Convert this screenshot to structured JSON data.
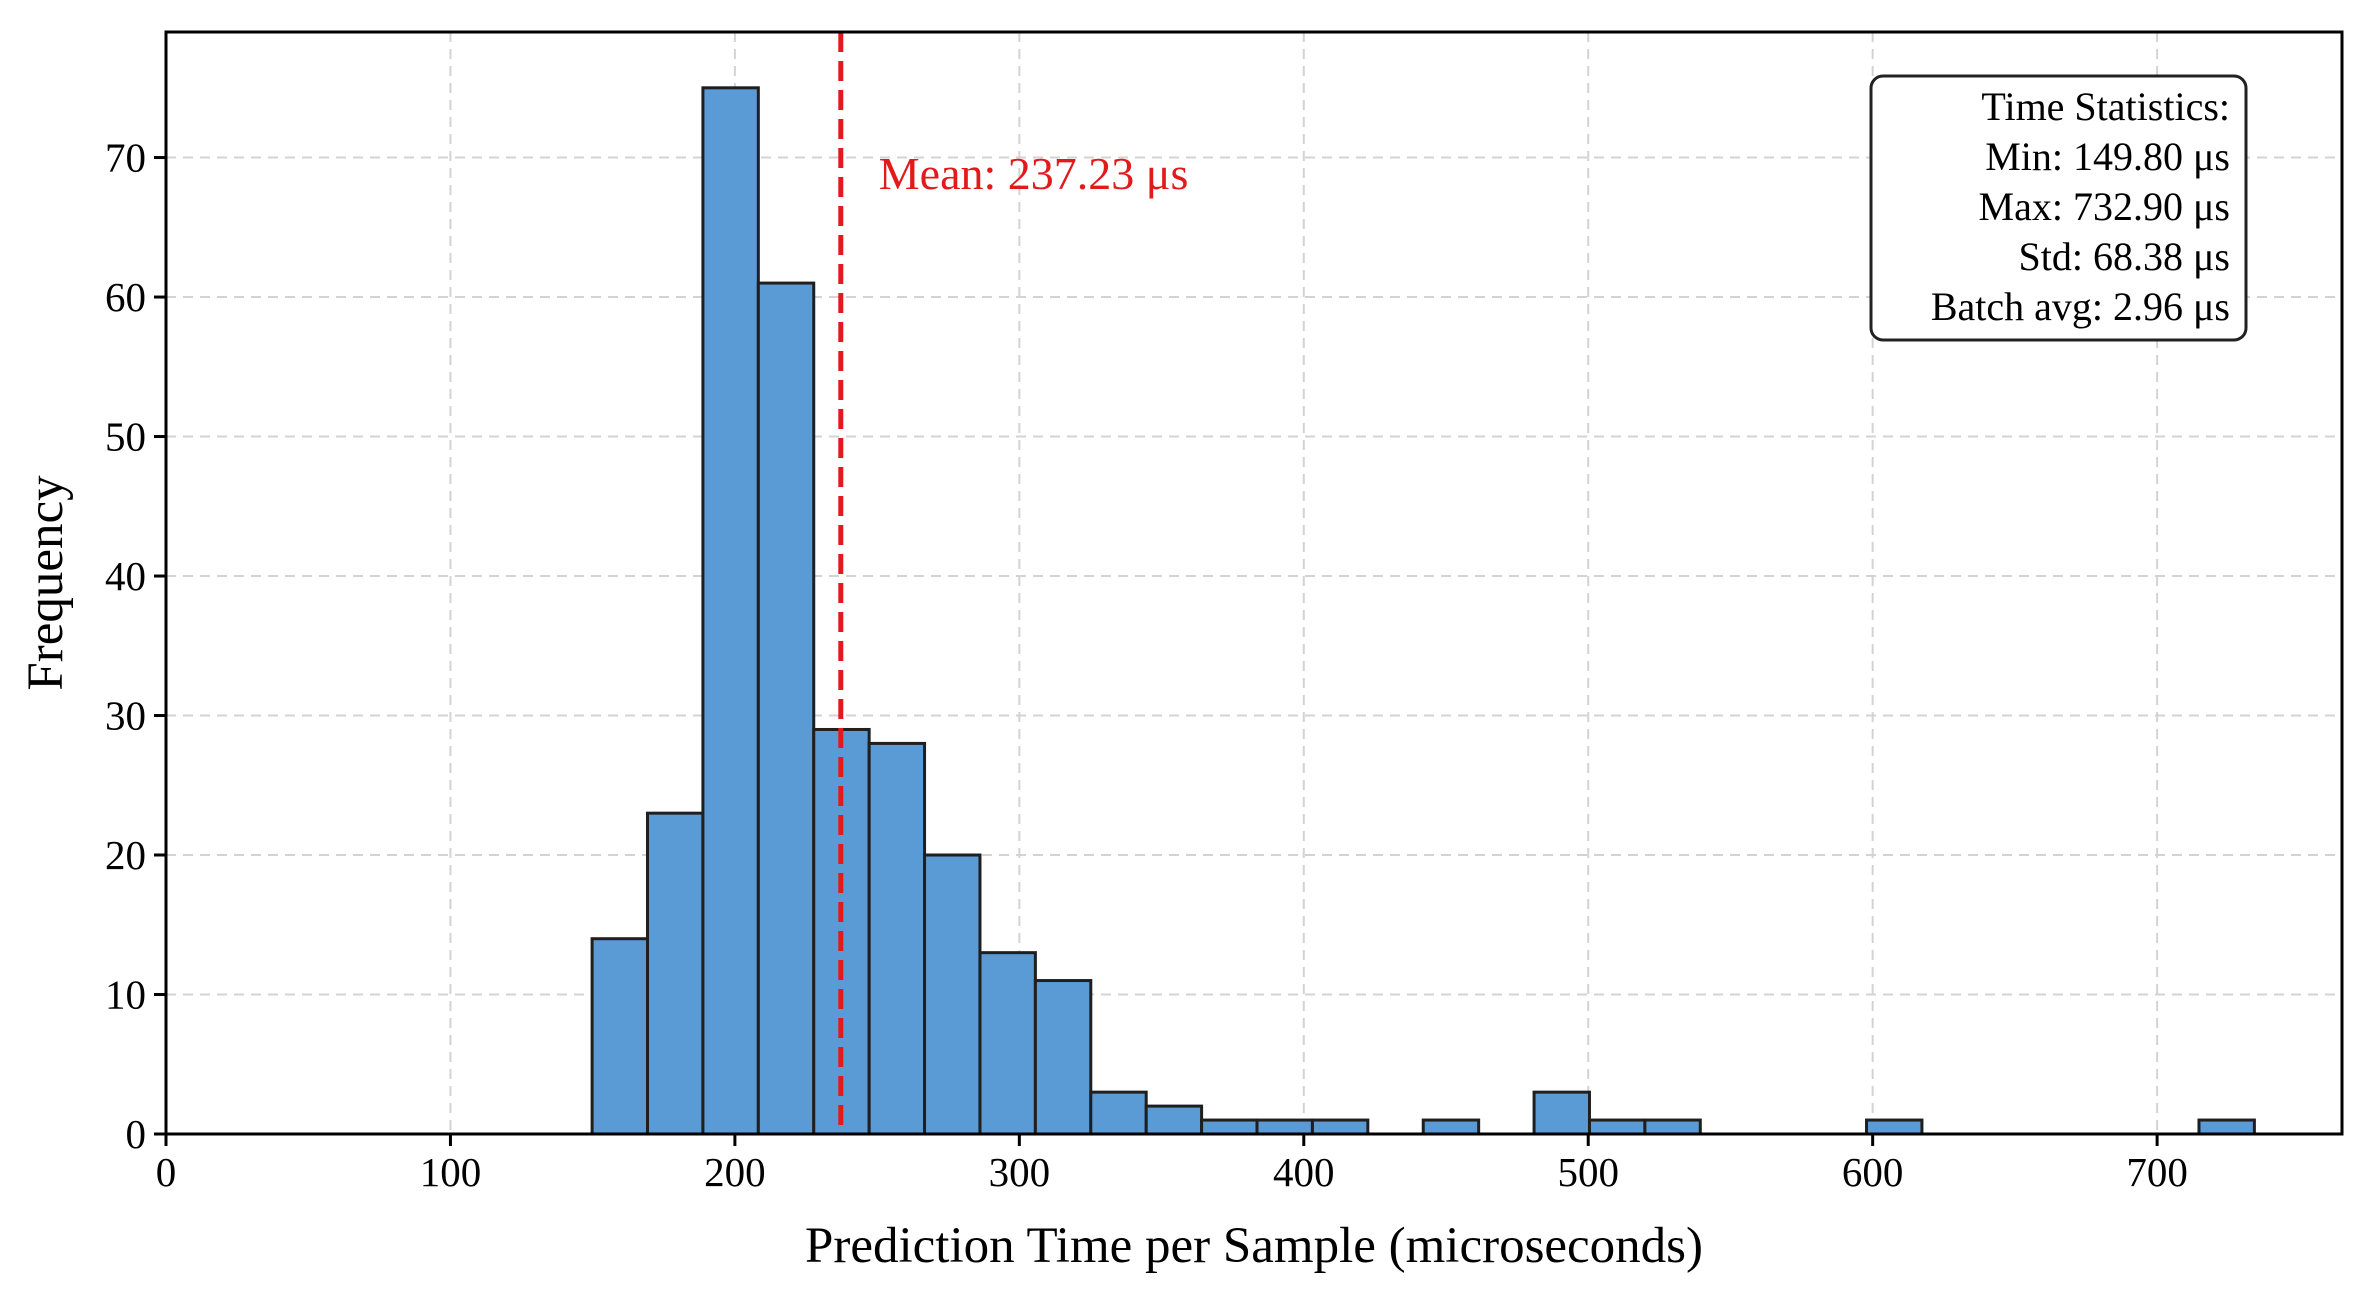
{
  "chart_data": {
    "type": "bar",
    "subtype": "histogram",
    "title": "",
    "xlabel": "Prediction Time per Sample (microseconds)",
    "ylabel": "Frequency",
    "xlim": [
      0,
      765
    ],
    "ylim": [
      0,
      79
    ],
    "xticks": [
      0,
      100,
      200,
      300,
      400,
      500,
      600,
      700
    ],
    "yticks": [
      0,
      10,
      20,
      30,
      40,
      50,
      60,
      70
    ],
    "grid": true,
    "bar_color": "#5b9bd5",
    "bar_edge_color": "#1f1f1f",
    "bin_width": 19.48,
    "bins": [
      {
        "start": 149.8,
        "count": 14
      },
      {
        "start": 169.28,
        "count": 23
      },
      {
        "start": 188.76,
        "count": 75
      },
      {
        "start": 208.24,
        "count": 61
      },
      {
        "start": 227.72,
        "count": 29
      },
      {
        "start": 247.2,
        "count": 28
      },
      {
        "start": 266.68,
        "count": 20
      },
      {
        "start": 286.16,
        "count": 13
      },
      {
        "start": 305.64,
        "count": 11
      },
      {
        "start": 325.12,
        "count": 3
      },
      {
        "start": 344.6,
        "count": 2
      },
      {
        "start": 364.08,
        "count": 1
      },
      {
        "start": 383.56,
        "count": 1
      },
      {
        "start": 403.04,
        "count": 1
      },
      {
        "start": 422.52,
        "count": 0
      },
      {
        "start": 442.0,
        "count": 1
      },
      {
        "start": 461.48,
        "count": 0
      },
      {
        "start": 480.96,
        "count": 3
      },
      {
        "start": 500.44,
        "count": 1
      },
      {
        "start": 519.92,
        "count": 1
      },
      {
        "start": 539.4,
        "count": 0
      },
      {
        "start": 558.88,
        "count": 0
      },
      {
        "start": 578.36,
        "count": 0
      },
      {
        "start": 597.84,
        "count": 1
      },
      {
        "start": 617.32,
        "count": 0
      },
      {
        "start": 636.8,
        "count": 0
      },
      {
        "start": 656.28,
        "count": 0
      },
      {
        "start": 675.76,
        "count": 0
      },
      {
        "start": 695.24,
        "count": 0
      },
      {
        "start": 714.72,
        "count": 1
      }
    ],
    "mean_line": {
      "value": 237.23,
      "label": "Mean: 237.23 μs",
      "color": "#e31a1c"
    },
    "stats_box": {
      "position": "top-right",
      "lines": [
        "Time Statistics:",
        "Min: 149.80 μs",
        "Max: 732.90 μs",
        "Std: 68.38 μs",
        "Batch avg: 2.96 μs"
      ]
    }
  }
}
